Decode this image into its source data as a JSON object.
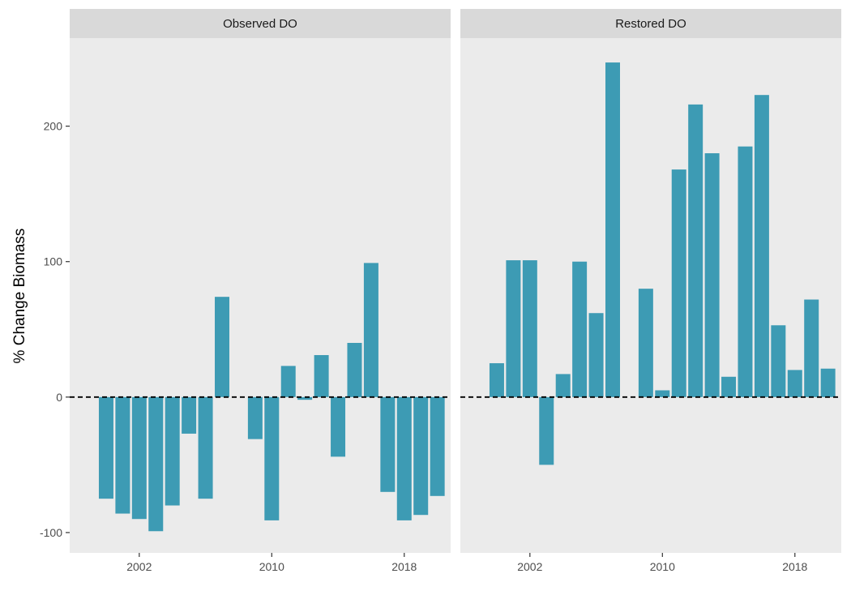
{
  "chart_data": {
    "type": "bar",
    "ylabel": "% Change Biomass",
    "xlabel": "",
    "title": "",
    "ylim": [
      -115,
      265
    ],
    "xlim": [
      1997.8,
      2020.8
    ],
    "x_ticks": [
      2002,
      2010,
      2018
    ],
    "y_ticks": [
      -100,
      0,
      100,
      200
    ],
    "reference_line": {
      "y": 0,
      "style": "dashed"
    },
    "bar_color": "#3d9bb4",
    "panel_background": "#ebebeb",
    "strip_background": "#d9d9d9",
    "grid": false,
    "legend": "none",
    "panels": [
      {
        "name": "Observed DO",
        "x": [
          2000,
          2001,
          2002,
          2003,
          2004,
          2005,
          2006,
          2007,
          2008,
          2009,
          2010,
          2011,
          2012,
          2013,
          2014,
          2015,
          2016,
          2017,
          2018,
          2019,
          2020
        ],
        "values": [
          -75,
          -86,
          -90,
          -99,
          -80,
          -27,
          -75,
          74,
          0,
          -31,
          -91,
          23,
          -2,
          31,
          -44,
          40,
          99,
          -70,
          -91,
          -87,
          -73
        ]
      },
      {
        "name": "Restored DO",
        "x": [
          2000,
          2001,
          2002,
          2003,
          2004,
          2005,
          2006,
          2007,
          2008,
          2009,
          2010,
          2011,
          2012,
          2013,
          2014,
          2015,
          2016,
          2017,
          2018,
          2019,
          2020
        ],
        "values": [
          25,
          101,
          101,
          -50,
          17,
          100,
          62,
          247,
          0,
          80,
          5,
          168,
          216,
          180,
          15,
          185,
          223,
          53,
          20,
          72,
          21
        ]
      }
    ]
  }
}
